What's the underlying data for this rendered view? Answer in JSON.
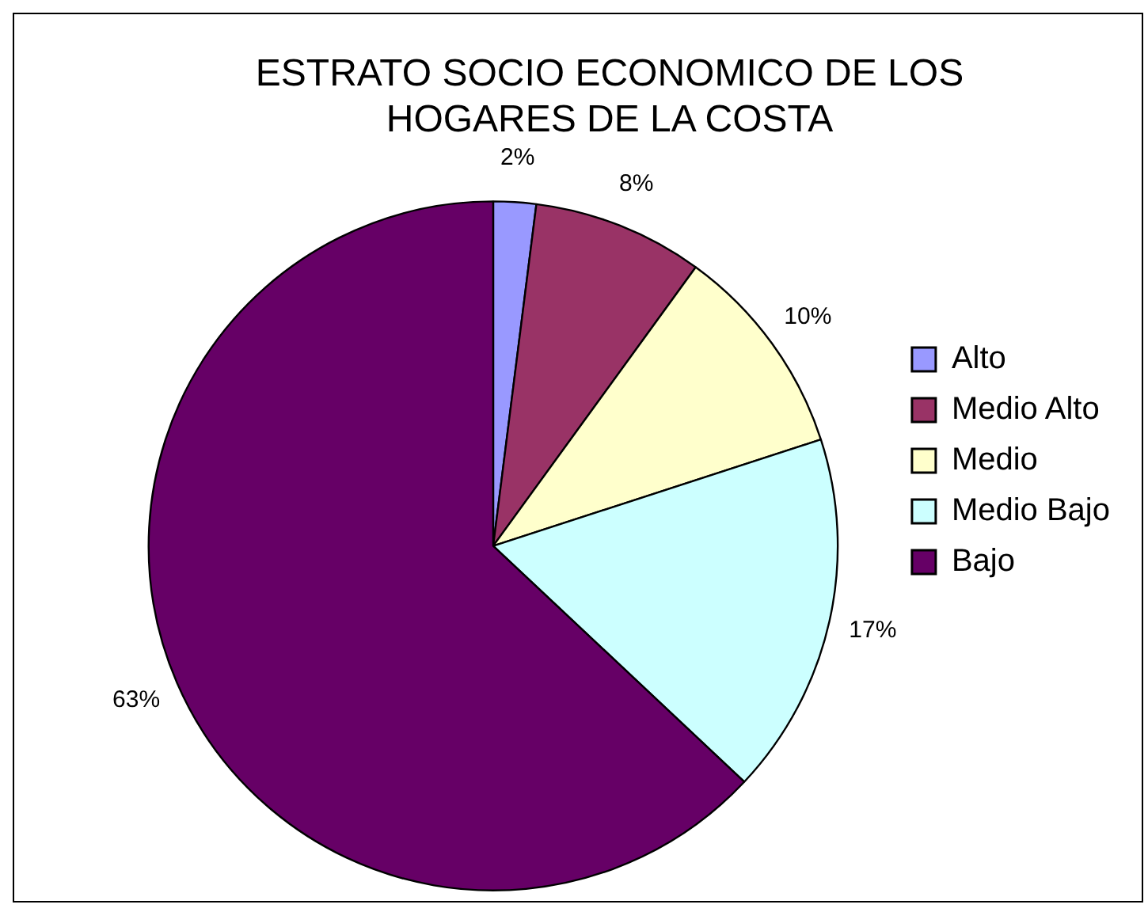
{
  "chart_data": {
    "type": "pie",
    "title": [
      "ESTRATO SOCIO ECONOMICO DE LOS",
      "HOGARES DE LA COSTA"
    ],
    "categories": [
      "Alto",
      "Medio Alto",
      "Medio",
      "Medio Bajo",
      "Bajo"
    ],
    "values": [
      2,
      8,
      10,
      17,
      63
    ],
    "colors": [
      "#9999ff",
      "#993366",
      "#ffffcc",
      "#ccffff",
      "#660066"
    ],
    "value_labels": [
      "2%",
      "8%",
      "10%",
      "17%",
      "63%"
    ],
    "legend": "right"
  }
}
